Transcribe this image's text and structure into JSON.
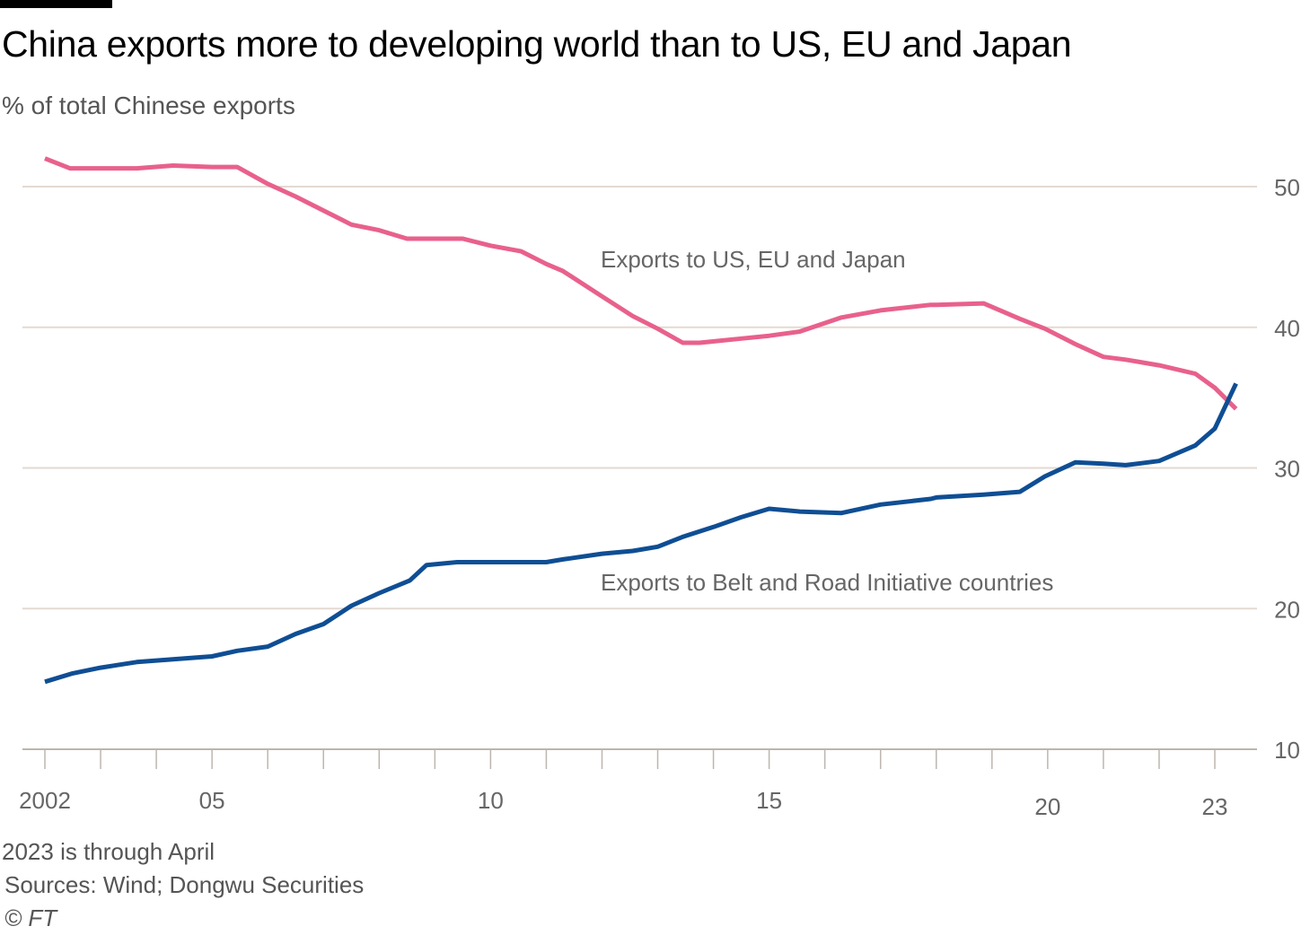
{
  "header": {
    "title": "China exports more to developing world than to US, EU and Japan",
    "subtitle": "% of total Chinese exports"
  },
  "footer": {
    "note": "2023 is through April",
    "sources": "Sources: Wind; Dongwu Securities",
    "copyright": "© FT"
  },
  "colors": {
    "series_us_eu_japan": "#e8618c",
    "series_bri": "#0f4e94",
    "gridline": "#e3dad2",
    "tick": "#bdb6af",
    "label": "#666666"
  },
  "chart_data": {
    "type": "line",
    "title": "China exports more to developing world than to US, EU and Japan",
    "ylabel": "% of total Chinese exports",
    "ylim": [
      10,
      50
    ],
    "yaxis_side": "right",
    "y_ticks": [
      10,
      20,
      30,
      40,
      50
    ],
    "y_tick_labels": [
      "10",
      "20",
      "30",
      "40",
      "50"
    ],
    "xlim": [
      2002,
      2023.7
    ],
    "x_ticks": [
      2002,
      2003,
      2004,
      2005,
      2006,
      2007,
      2008,
      2009,
      2010,
      2011,
      2012,
      2013,
      2014,
      2015,
      2016,
      2017,
      2018,
      2019,
      2020,
      2021,
      2022,
      2023
    ],
    "x_tick_labels": [
      {
        "year": 2002,
        "label": "2002"
      },
      {
        "year": 2005,
        "label": "05"
      },
      {
        "year": 2010,
        "label": "10"
      },
      {
        "year": 2015,
        "label": "15"
      },
      {
        "year": 2020,
        "label": "20"
      },
      {
        "year": 2023,
        "label": "23"
      }
    ],
    "series": [
      {
        "name": "Exports to US, EU and Japan",
        "label": "Exports to US, EU and Japan",
        "color": "#e8618c",
        "x": [
          2002,
          2002.45,
          2003,
          2003.65,
          2004.3,
          2005,
          2005.45,
          2006,
          2006.5,
          2007,
          2007.5,
          2008,
          2008.5,
          2009,
          2009.5,
          2010,
          2010.55,
          2011,
          2011.3,
          2012,
          2012.55,
          2013,
          2013.45,
          2013.75,
          2014.5,
          2015,
          2015.55,
          2016.3,
          2017,
          2017.9,
          2018,
          2018.85,
          2019.5,
          2019.95,
          2020.5,
          2021,
          2021.4,
          2022,
          2022.65,
          2023,
          2023.38
        ],
        "y": [
          52.0,
          51.3,
          51.3,
          51.3,
          51.5,
          51.4,
          51.4,
          50.2,
          49.3,
          48.3,
          47.3,
          46.9,
          46.3,
          46.3,
          46.3,
          45.8,
          45.4,
          44.5,
          44.0,
          42.2,
          40.8,
          39.9,
          38.9,
          38.9,
          39.2,
          39.4,
          39.7,
          40.7,
          41.2,
          41.6,
          41.6,
          41.7,
          40.6,
          39.9,
          38.8,
          37.9,
          37.7,
          37.3,
          36.7,
          35.7,
          34.2
        ]
      },
      {
        "name": "Exports to Belt and Road Initiative countries",
        "label": "Exports to Belt and Road Initiative countries",
        "color": "#0f4e94",
        "x": [
          2002,
          2002.5,
          2003,
          2003.65,
          2004.3,
          2005,
          2005.45,
          2006,
          2006.5,
          2007,
          2007.5,
          2008,
          2008.55,
          2008.85,
          2009.4,
          2010,
          2010.6,
          2011,
          2011.3,
          2012,
          2012.55,
          2013,
          2013.45,
          2014,
          2014.5,
          2015,
          2015.55,
          2016.3,
          2017,
          2017.9,
          2018,
          2018.85,
          2019.5,
          2019.95,
          2020.5,
          2021,
          2021.4,
          2022,
          2022.65,
          2023,
          2023.38
        ],
        "y": [
          14.8,
          15.4,
          15.8,
          16.2,
          16.4,
          16.6,
          17.0,
          17.3,
          18.2,
          18.9,
          20.2,
          21.1,
          22.0,
          23.1,
          23.3,
          23.3,
          23.3,
          23.3,
          23.5,
          23.9,
          24.1,
          24.4,
          25.1,
          25.8,
          26.5,
          27.1,
          26.9,
          26.8,
          27.4,
          27.8,
          27.9,
          28.1,
          28.3,
          29.4,
          30.4,
          30.3,
          30.2,
          30.5,
          31.6,
          32.8,
          36.0
        ]
      }
    ]
  }
}
